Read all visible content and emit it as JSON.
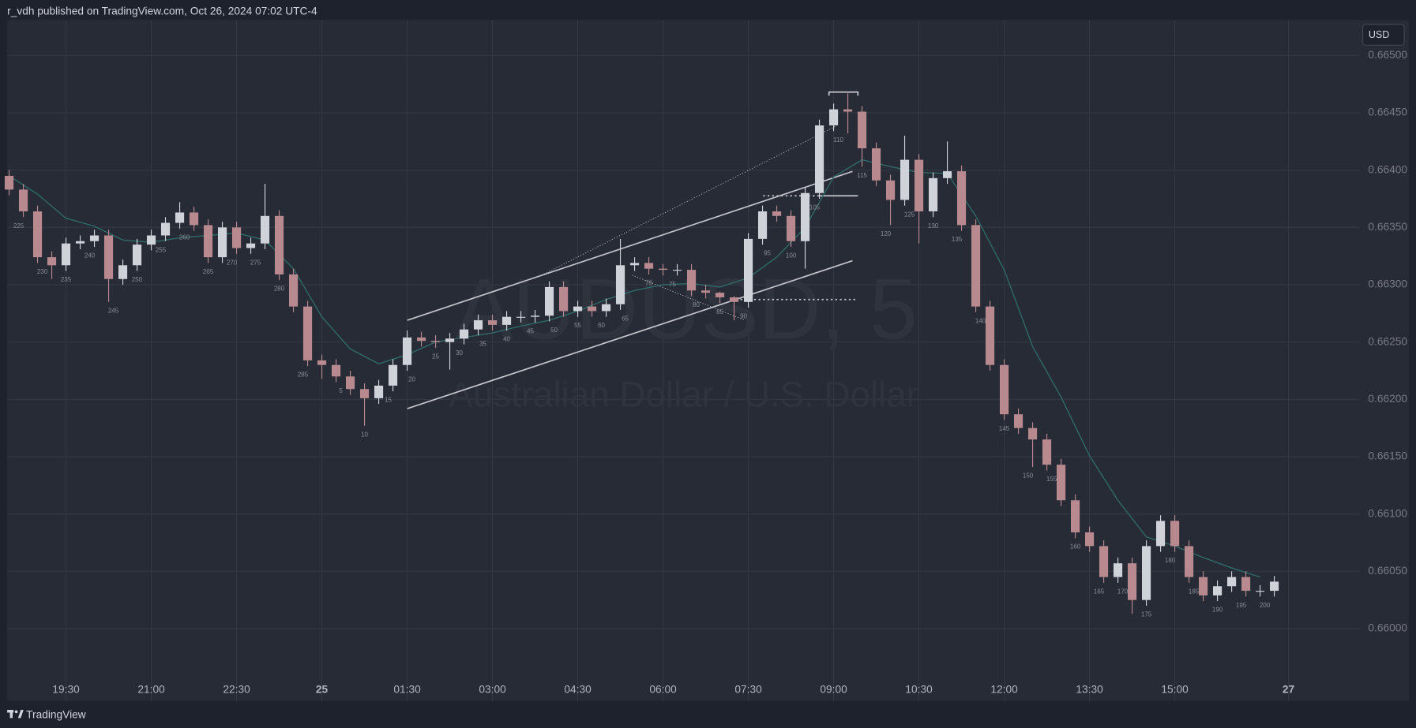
{
  "header": {
    "title": "r_vdh published on TradingView.com, Oct 26, 2024 07:02 UTC-4"
  },
  "footer": {
    "brand": "TradingView"
  },
  "currency_button": "USD",
  "chart_data": {
    "type": "candlestick",
    "title": "AUDUSD, 5",
    "subtitle": "Australian Dollar / U.S. Dollar",
    "up_color": "#cfd2d9",
    "down_color": "#b88a8f",
    "grid": true,
    "x": [
      0,
      3,
      6,
      9,
      12,
      15,
      18,
      21,
      24,
      27,
      30,
      33,
      36,
      39,
      42,
      45,
      48,
      51,
      54,
      57,
      60,
      63,
      66,
      69,
      72,
      75,
      78,
      81,
      84,
      87,
      90,
      93,
      96,
      99,
      102,
      105,
      108,
      111,
      114,
      117,
      120,
      123,
      126,
      129,
      132,
      135,
      138,
      141,
      144,
      147,
      150,
      153,
      156,
      159,
      162,
      165,
      168,
      171,
      174,
      177,
      180,
      183,
      186,
      189,
      192,
      195,
      198,
      201,
      204,
      207,
      210,
      213,
      216,
      219,
      222,
      225,
      228,
      231,
      234,
      237,
      240,
      243,
      246,
      249,
      252,
      255,
      258,
      261,
      264,
      267
    ],
    "open": [
      0.66395,
      0.66383,
      0.66364,
      0.66324,
      0.66317,
      0.66336,
      0.66338,
      0.66343,
      0.66305,
      0.66317,
      0.66335,
      0.66343,
      0.66354,
      0.66363,
      0.66352,
      0.66324,
      0.6635,
      0.66332,
      0.66336,
      0.6636,
      0.66309,
      0.66281,
      0.66234,
      0.6623,
      0.6622,
      0.66209,
      0.66201,
      0.66212,
      0.6623,
      0.66254,
      0.66251,
      0.6625,
      0.66253,
      0.66261,
      0.66269,
      0.66265,
      0.66272,
      0.66272,
      0.66273,
      0.66298,
      0.66277,
      0.66281,
      0.66277,
      0.66283,
      0.66317,
      0.66319,
      0.66314,
      0.66313,
      0.66313,
      0.66295,
      0.66293,
      0.66289,
      0.66285,
      0.6634,
      0.66364,
      0.6636,
      0.66338,
      0.6638,
      0.66439,
      0.66453,
      0.66451,
      0.66419,
      0.66391,
      0.66374,
      0.66409,
      0.66364,
      0.66393,
      0.66399,
      0.66352,
      0.66281,
      0.6623,
      0.66187,
      0.66175,
      0.66165,
      0.66143,
      0.66112,
      0.66084,
      0.66072,
      0.66045,
      0.66057,
      0.66025,
      0.66072,
      0.66094,
      0.66072,
      0.66045,
      0.66029,
      0.66037,
      0.66045,
      0.66033,
      0.66033
    ],
    "high": [
      0.664,
      0.66388,
      0.66369,
      0.66329,
      0.66341,
      0.66343,
      0.66348,
      0.66348,
      0.66322,
      0.6634,
      0.66348,
      0.66359,
      0.66372,
      0.66368,
      0.66357,
      0.66355,
      0.66355,
      0.66341,
      0.66388,
      0.66365,
      0.66314,
      0.66286,
      0.66239,
      0.66235,
      0.66225,
      0.66214,
      0.66217,
      0.66235,
      0.6626,
      0.66259,
      0.66256,
      0.66258,
      0.66266,
      0.66274,
      0.66274,
      0.66277,
      0.66277,
      0.66278,
      0.66303,
      0.66303,
      0.66286,
      0.66286,
      0.66288,
      0.6634,
      0.66324,
      0.66324,
      0.66318,
      0.66318,
      0.66318,
      0.663,
      0.66294,
      0.6629,
      0.66345,
      0.66369,
      0.66369,
      0.66365,
      0.66385,
      0.66444,
      0.66458,
      0.66467,
      0.66456,
      0.66424,
      0.66396,
      0.6643,
      0.66414,
      0.66398,
      0.66425,
      0.66404,
      0.66357,
      0.66286,
      0.66235,
      0.66192,
      0.6618,
      0.6617,
      0.66148,
      0.66117,
      0.66089,
      0.66077,
      0.66062,
      0.66062,
      0.66077,
      0.66099,
      0.66099,
      0.66077,
      0.6605,
      0.66042,
      0.6605,
      0.6605,
      0.66038,
      0.66046
    ],
    "low": [
      0.66378,
      0.66359,
      0.66319,
      0.66305,
      0.66312,
      0.66331,
      0.66333,
      0.66285,
      0.663,
      0.66312,
      0.6633,
      0.66338,
      0.66349,
      0.66347,
      0.66319,
      0.66319,
      0.66327,
      0.66327,
      0.66331,
      0.66304,
      0.66276,
      0.66229,
      0.66218,
      0.66215,
      0.66204,
      0.66177,
      0.66196,
      0.66207,
      0.66225,
      0.66246,
      0.66245,
      0.66226,
      0.66248,
      0.66256,
      0.6626,
      0.6626,
      0.66267,
      0.66267,
      0.66268,
      0.66272,
      0.66272,
      0.66272,
      0.66272,
      0.66278,
      0.66312,
      0.66309,
      0.66308,
      0.66308,
      0.6629,
      0.66288,
      0.66284,
      0.66269,
      0.6628,
      0.66335,
      0.66355,
      0.66333,
      0.66314,
      0.66375,
      0.66434,
      0.66432,
      0.66403,
      0.66386,
      0.66352,
      0.66369,
      0.66336,
      0.66359,
      0.66388,
      0.66347,
      0.66276,
      0.66225,
      0.66182,
      0.6617,
      0.66141,
      0.66138,
      0.66107,
      0.66079,
      0.66067,
      0.6604,
      0.6604,
      0.66013,
      0.6602,
      0.66067,
      0.66067,
      0.6604,
      0.66024,
      0.66024,
      0.66032,
      0.66028,
      0.66028,
      0.66028
    ],
    "close": [
      0.66383,
      0.66364,
      0.66324,
      0.66317,
      0.66336,
      0.66338,
      0.66343,
      0.66305,
      0.66317,
      0.66335,
      0.66343,
      0.66354,
      0.66363,
      0.66352,
      0.66324,
      0.6635,
      0.66332,
      0.66336,
      0.6636,
      0.66309,
      0.66281,
      0.66234,
      0.6623,
      0.6622,
      0.66209,
      0.66201,
      0.66212,
      0.6623,
      0.66254,
      0.66251,
      0.6625,
      0.66253,
      0.66261,
      0.66269,
      0.66265,
      0.66272,
      0.66272,
      0.66273,
      0.66298,
      0.66277,
      0.66281,
      0.66277,
      0.66283,
      0.66317,
      0.66319,
      0.66314,
      0.66313,
      0.66313,
      0.66295,
      0.66293,
      0.66289,
      0.66285,
      0.6634,
      0.66364,
      0.6636,
      0.66338,
      0.6638,
      0.66439,
      0.66453,
      0.66451,
      0.66419,
      0.66391,
      0.66374,
      0.66409,
      0.66364,
      0.66393,
      0.66399,
      0.66352,
      0.66281,
      0.6623,
      0.66187,
      0.66175,
      0.66165,
      0.66143,
      0.66112,
      0.66084,
      0.66072,
      0.66045,
      0.66057,
      0.66025,
      0.66072,
      0.66094,
      0.66072,
      0.66045,
      0.66029,
      0.66037,
      0.66045,
      0.66033,
      0.66033,
      0.66041
    ],
    "moving_average": {
      "color": "#2e6b69",
      "x": [
        0,
        6,
        12,
        18,
        24,
        30,
        36,
        42,
        48,
        54,
        60,
        66,
        72,
        78,
        84,
        90,
        96,
        102,
        108,
        114,
        120,
        126,
        132,
        138,
        144,
        150,
        156,
        162,
        168,
        174,
        180,
        186,
        192,
        198,
        204,
        210,
        216,
        222,
        228,
        234,
        240,
        246,
        252,
        258,
        264
      ],
      "values": [
        0.66395,
        0.66379,
        0.66358,
        0.66351,
        0.66339,
        0.66337,
        0.66341,
        0.66343,
        0.66345,
        0.66339,
        0.66314,
        0.66272,
        0.66244,
        0.66231,
        0.66239,
        0.6625,
        0.66254,
        0.66258,
        0.66264,
        0.66269,
        0.66277,
        0.66287,
        0.66295,
        0.663,
        0.66301,
        0.66298,
        0.66306,
        0.66324,
        0.6635,
        0.66394,
        0.66409,
        0.66403,
        0.66398,
        0.66397,
        0.6636,
        0.66313,
        0.66246,
        0.66202,
        0.66151,
        0.66112,
        0.6608,
        0.66072,
        0.66062,
        0.66053,
        0.66045
      ]
    },
    "bar_numbers": [
      "225",
      "230",
      "235",
      "240",
      "245",
      "250",
      "255",
      "260",
      "265",
      "270",
      "275",
      "280",
      "285",
      "5",
      "10",
      "15",
      "20",
      "25",
      "30",
      "35",
      "40",
      "45",
      "50",
      "55",
      "60",
      "65",
      "70",
      "75",
      "80",
      "85",
      "90",
      "95",
      "100",
      "105",
      "110",
      "115",
      "120",
      "125",
      "130",
      "135",
      "140",
      "145",
      "150",
      "155",
      "160",
      "165",
      "170",
      "175",
      "180",
      "185",
      "190",
      "195",
      "200"
    ],
    "xlim": [
      -0.4,
      284.9
    ],
    "xticks": [
      {
        "value": 12,
        "label": "19:30"
      },
      {
        "value": 30,
        "label": "21:00"
      },
      {
        "value": 48,
        "label": "22:30"
      },
      {
        "value": 66,
        "label": "25"
      },
      {
        "value": 84,
        "label": "01:30"
      },
      {
        "value": 102,
        "label": "03:00"
      },
      {
        "value": 120,
        "label": "04:30"
      },
      {
        "value": 138,
        "label": "06:00"
      },
      {
        "value": 156,
        "label": "07:30"
      },
      {
        "value": 174,
        "label": "09:00"
      },
      {
        "value": 192,
        "label": "10:30"
      },
      {
        "value": 210,
        "label": "12:00"
      },
      {
        "value": 228,
        "label": "13:30"
      },
      {
        "value": 246,
        "label": "15:00"
      },
      {
        "value": 270,
        "label": "27"
      }
    ],
    "ylim": [
      0.65937,
      0.66531
    ],
    "yticks": [
      {
        "value": 0.66,
        "label": "0.66000"
      },
      {
        "value": 0.6605,
        "label": "0.66050"
      },
      {
        "value": 0.661,
        "label": "0.66100"
      },
      {
        "value": 0.6615,
        "label": "0.66150"
      },
      {
        "value": 0.662,
        "label": "0.66200"
      },
      {
        "value": 0.6625,
        "label": "0.66250"
      },
      {
        "value": 0.663,
        "label": "0.66300"
      },
      {
        "value": 0.6635,
        "label": "0.66350"
      },
      {
        "value": 0.664,
        "label": "0.66400"
      },
      {
        "value": 0.6645,
        "label": "0.66450"
      },
      {
        "value": 0.665,
        "label": "0.66500"
      }
    ]
  }
}
